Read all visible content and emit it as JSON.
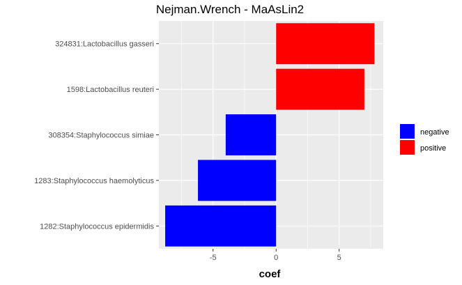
{
  "chart_data": {
    "type": "bar",
    "orientation": "horizontal",
    "title": "Nejman.Wrench - MaAsLin2",
    "xlabel": "coef",
    "ylabel": "",
    "categories": [
      "324831:Lactobacillus gasseri",
      "1598:Lactobacillus reuteri",
      "308354:Staphylococcus simiae",
      "1283:Staphylococcus haemolyticus",
      "1282:Staphylococcus epidermidis"
    ],
    "values": [
      7.8,
      7.0,
      -4.0,
      -6.2,
      -8.8
    ],
    "groups": [
      "positive",
      "positive",
      "negative",
      "negative",
      "negative"
    ],
    "xlim": [
      -9.3,
      8.5
    ],
    "xticks": [
      -5,
      0,
      5
    ],
    "xtick_labels": [
      "-5",
      "0",
      "5"
    ],
    "grid": true,
    "legend": {
      "position": "right",
      "entries": [
        {
          "label": "negative",
          "color": "#0000ff"
        },
        {
          "label": "positive",
          "color": "#ff0000"
        }
      ]
    },
    "colors": {
      "negative": "#0000ff",
      "positive": "#ff0000",
      "panel": "#ebebeb",
      "grid": "#ffffff"
    }
  }
}
